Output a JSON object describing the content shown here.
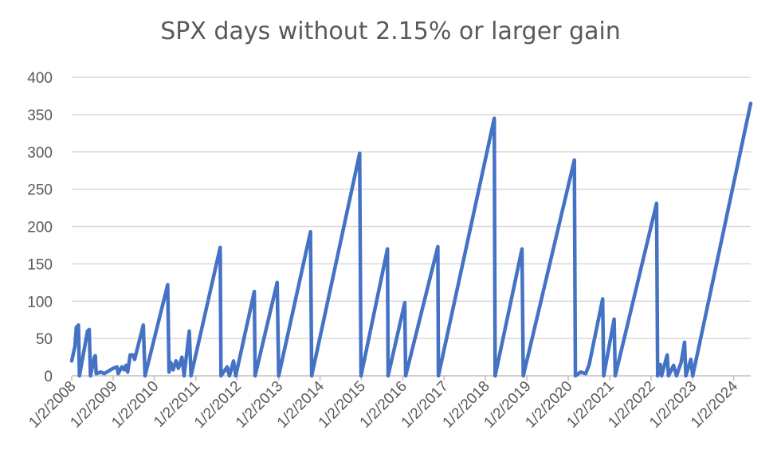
{
  "chart_data": {
    "type": "line",
    "title": "SPX days without 2.15% or larger gain",
    "xlabel": "",
    "ylabel": "",
    "ylim": [
      0,
      400
    ],
    "yticks": [
      0,
      50,
      100,
      150,
      200,
      250,
      300,
      350,
      400
    ],
    "xticks": [
      "1/2/2008",
      "1/2/2009",
      "1/2/2010",
      "1/2/2011",
      "1/2/2012",
      "1/2/2013",
      "1/2/2014",
      "1/2/2015",
      "1/2/2016",
      "1/2/2017",
      "1/2/2018",
      "1/2/2019",
      "1/2/2020",
      "1/2/2021",
      "1/2/2022",
      "1/2/2023",
      "1/2/2024"
    ],
    "grid": true,
    "legend": "none",
    "series_color": "#4472c4",
    "x_start": "2008-01-02",
    "x_end": "2024-05-31",
    "series": [
      {
        "points": [
          [
            "2008-01-02",
            20
          ],
          [
            "2008-01-31",
            40
          ],
          [
            "2008-02-12",
            65
          ],
          [
            "2008-03-01",
            68
          ],
          [
            "2008-03-10",
            0
          ],
          [
            "2008-05-20",
            60
          ],
          [
            "2008-06-05",
            62
          ],
          [
            "2008-06-15",
            0
          ],
          [
            "2008-07-20",
            25
          ],
          [
            "2008-07-28",
            27
          ],
          [
            "2008-08-05",
            3
          ],
          [
            "2008-09-15",
            5
          ],
          [
            "2008-10-15",
            3
          ],
          [
            "2009-01-02",
            10
          ],
          [
            "2009-02-05",
            12
          ],
          [
            "2009-02-15",
            3
          ],
          [
            "2009-03-20",
            12
          ],
          [
            "2009-04-10",
            8
          ],
          [
            "2009-04-25",
            14
          ],
          [
            "2009-05-10",
            5
          ],
          [
            "2009-06-01",
            28
          ],
          [
            "2009-06-25",
            28
          ],
          [
            "2009-07-10",
            22
          ],
          [
            "2009-09-25",
            68
          ],
          [
            "2009-10-10",
            0
          ],
          [
            "2010-04-28",
            122
          ],
          [
            "2010-05-10",
            5
          ],
          [
            "2010-05-25",
            18
          ],
          [
            "2010-06-15",
            8
          ],
          [
            "2010-07-10",
            20
          ],
          [
            "2010-08-01",
            10
          ],
          [
            "2010-09-01",
            25
          ],
          [
            "2010-09-20",
            0
          ],
          [
            "2010-11-05",
            60
          ],
          [
            "2010-11-20",
            0
          ],
          [
            "2011-08-05",
            172
          ],
          [
            "2011-08-12",
            0
          ],
          [
            "2011-10-05",
            12
          ],
          [
            "2011-10-25",
            0
          ],
          [
            "2011-11-30",
            20
          ],
          [
            "2011-12-20",
            0
          ],
          [
            "2012-06-01",
            113
          ],
          [
            "2012-06-08",
            0
          ],
          [
            "2012-12-20",
            125
          ],
          [
            "2013-01-02",
            0
          ],
          [
            "2013-10-10",
            193
          ],
          [
            "2013-10-20",
            0
          ],
          [
            "2014-12-18",
            298
          ],
          [
            "2014-12-30",
            0
          ],
          [
            "2015-08-20",
            170
          ],
          [
            "2015-08-26",
            0
          ],
          [
            "2016-01-20",
            98
          ],
          [
            "2016-01-28",
            0
          ],
          [
            "2016-11-07",
            173
          ],
          [
            "2016-11-12",
            0
          ],
          [
            "2018-03-20",
            345
          ],
          [
            "2018-03-28",
            0
          ],
          [
            "2018-11-20",
            170
          ],
          [
            "2018-12-01",
            0
          ],
          [
            "2020-02-25",
            289
          ],
          [
            "2020-03-05",
            0
          ],
          [
            "2020-04-20",
            5
          ],
          [
            "2020-06-05",
            3
          ],
          [
            "2020-07-05",
            15
          ],
          [
            "2020-11-01",
            103
          ],
          [
            "2020-11-10",
            0
          ],
          [
            "2021-02-10",
            76
          ],
          [
            "2021-02-20",
            0
          ],
          [
            "2022-02-20",
            231
          ],
          [
            "2022-03-01",
            0
          ],
          [
            "2022-03-25",
            15
          ],
          [
            "2022-04-05",
            0
          ],
          [
            "2022-05-25",
            28
          ],
          [
            "2022-06-05",
            0
          ],
          [
            "2022-07-20",
            14
          ],
          [
            "2022-08-15",
            0
          ],
          [
            "2022-09-25",
            18
          ],
          [
            "2022-10-25",
            45
          ],
          [
            "2022-11-05",
            0
          ],
          [
            "2022-12-20",
            22
          ],
          [
            "2023-01-05",
            0
          ],
          [
            "2024-05-31",
            365
          ]
        ]
      }
    ]
  }
}
